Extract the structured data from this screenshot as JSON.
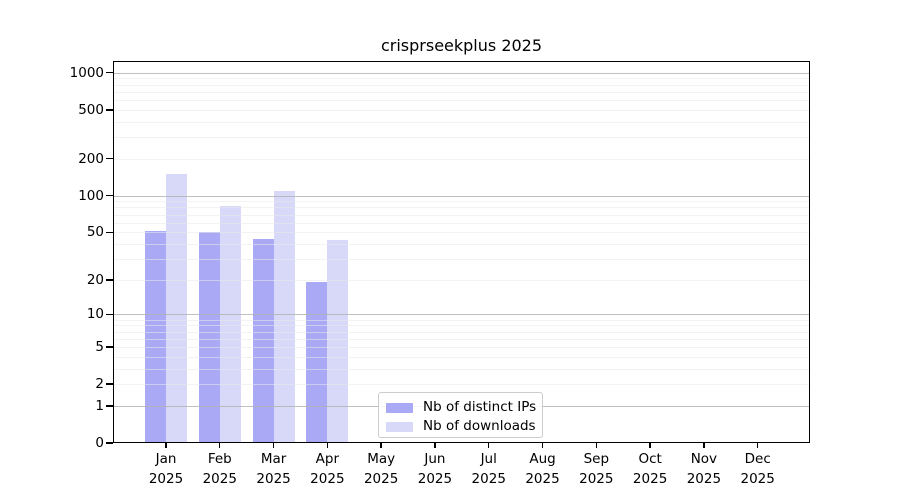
{
  "title": "crisprseekplus 2025",
  "chart_data": {
    "type": "bar",
    "title": "crisprseekplus 2025",
    "y_scale": "log10(1+value)",
    "ylim": [
      0,
      1250
    ],
    "y_ticks": [
      0,
      1,
      2,
      5,
      10,
      20,
      50,
      100,
      200,
      500,
      1000
    ],
    "y_major_gridlines": [
      1,
      10,
      100,
      1000
    ],
    "grid": true,
    "legend_position": "inside-bottom-center",
    "categories": [
      "Jan",
      "Feb",
      "Mar",
      "Apr",
      "May",
      "Jun",
      "Jul",
      "Aug",
      "Sep",
      "Oct",
      "Nov",
      "Dec"
    ],
    "year_label": "2025",
    "series": [
      {
        "name": "Nb of distinct IPs",
        "color": "#a9a9f6",
        "values": [
          51,
          50,
          44,
          19,
          null,
          null,
          null,
          null,
          null,
          null,
          null,
          null
        ]
      },
      {
        "name": "Nb of downloads",
        "color": "#d8d8f8",
        "values": [
          150,
          83,
          110,
          43,
          null,
          null,
          null,
          null,
          null,
          null,
          null,
          null
        ]
      }
    ]
  },
  "colors": {
    "major_grid": "#b0b0b0",
    "minor_grid": "#e9e9e9",
    "axis": "#000000"
  }
}
